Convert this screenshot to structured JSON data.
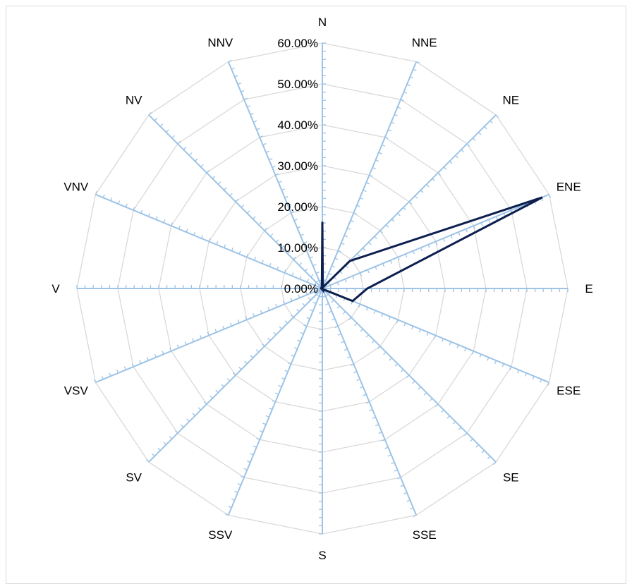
{
  "chart_data": {
    "type": "radar",
    "categories": [
      "N",
      "NNE",
      "NE",
      "ENE",
      "E",
      "ESE",
      "SE",
      "SSE",
      "S",
      "SSV",
      "SV",
      "VSV",
      "V",
      "VNV",
      "NV",
      "NNV"
    ],
    "series": [
      {
        "values": [
          16.3,
          0.3,
          9.5,
          58.2,
          11.0,
          8.0,
          0.3,
          0.5,
          0.2,
          0.2,
          0.2,
          0.2,
          0.3,
          0.3,
          0.3,
          0.3
        ]
      }
    ],
    "rlim": [
      0,
      60
    ],
    "tick_values": [
      0,
      10,
      20,
      30,
      40,
      50,
      60
    ],
    "tick_labels": [
      "0.00%",
      "10.00%",
      "20.00%",
      "30.00%",
      "40.00%",
      "50.00%",
      "60.00%"
    ],
    "grid": true,
    "colors": {
      "series": "#0d1f4f",
      "spokes": "#9dc3e6",
      "grid": "#d9d9d9"
    }
  }
}
